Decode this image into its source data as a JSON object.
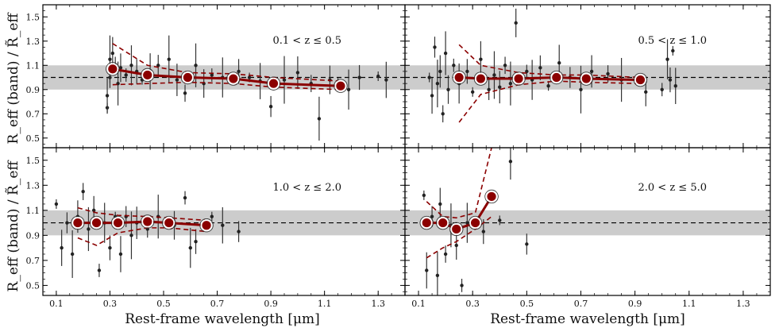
{
  "chart_data": {
    "type": "scatter",
    "title": "",
    "xlabel": "Rest-frame wavelength [μm]",
    "ylabel": "R_eff (band) / R̃_eff",
    "xlim": [
      0.05,
      1.4
    ],
    "ylim": [
      0.42,
      1.6
    ],
    "xticks": [
      0.1,
      0.3,
      0.5,
      0.7,
      0.9,
      1.1,
      1.3
    ],
    "yticks": [
      0.5,
      0.7,
      0.9,
      1.1,
      1.3,
      1.5
    ],
    "reference_line": 1.0,
    "shaded_band": [
      0.9,
      1.1
    ],
    "colors": {
      "trend": "#8b0000",
      "points": "#222222",
      "band": "#cccccc"
    },
    "panels": [
      {
        "label": "0.1 < z ≤ 0.5",
        "median": {
          "x": [
            0.31,
            0.44,
            0.59,
            0.76,
            0.91,
            1.16
          ],
          "y": [
            1.07,
            1.02,
            1.0,
            0.99,
            0.95,
            0.93
          ]
        },
        "band_upper": [
          1.28,
          1.1,
          1.04,
          1.03,
          1.0,
          0.97
        ],
        "band_lower": [
          0.94,
          0.95,
          0.96,
          0.95,
          0.92,
          0.9
        ],
        "points": [
          [
            0.29,
            0.75
          ],
          [
            0.29,
            0.85
          ],
          [
            0.3,
            1.0
          ],
          [
            0.3,
            1.15
          ],
          [
            0.31,
            1.2
          ],
          [
            0.32,
            1.1
          ],
          [
            0.33,
            0.95
          ],
          [
            0.34,
            1.08
          ],
          [
            0.36,
            1.02
          ],
          [
            0.38,
            1.1
          ],
          [
            0.4,
            1.05
          ],
          [
            0.42,
            0.98
          ],
          [
            0.45,
            1.05
          ],
          [
            0.48,
            1.1
          ],
          [
            0.52,
            1.15
          ],
          [
            0.55,
            0.98
          ],
          [
            0.58,
            0.87
          ],
          [
            0.62,
            1.1
          ],
          [
            0.65,
            0.95
          ],
          [
            0.68,
            1.02
          ],
          [
            0.72,
            1.0
          ],
          [
            0.78,
            1.05
          ],
          [
            0.82,
            1.0
          ],
          [
            0.86,
            0.97
          ],
          [
            0.9,
            0.76
          ],
          [
            0.95,
            0.98
          ],
          [
            1.0,
            1.04
          ],
          [
            1.05,
            0.95
          ],
          [
            1.08,
            0.66
          ],
          [
            1.12,
            0.98
          ],
          [
            1.15,
            0.94
          ],
          [
            1.19,
            0.9
          ],
          [
            1.23,
            1.0
          ],
          [
            1.3,
            1.01
          ],
          [
            1.33,
            0.98
          ]
        ]
      },
      {
        "label": "0.5 < z ≤ 1.0",
        "median": {
          "x": [
            0.25,
            0.33,
            0.47,
            0.61,
            0.72,
            0.92
          ],
          "y": [
            1.0,
            0.99,
            0.99,
            1.0,
            0.99,
            0.98
          ]
        },
        "band_upper": [
          1.27,
          1.1,
          1.04,
          1.02,
          1.02,
          1.0
        ],
        "band_lower": [
          0.63,
          0.86,
          0.94,
          0.97,
          0.96,
          0.95
        ],
        "points": [
          [
            0.14,
            1.0
          ],
          [
            0.15,
            0.85
          ],
          [
            0.16,
            1.25
          ],
          [
            0.17,
            0.95
          ],
          [
            0.18,
            1.05
          ],
          [
            0.19,
            0.7
          ],
          [
            0.2,
            1.2
          ],
          [
            0.21,
            0.9
          ],
          [
            0.23,
            1.1
          ],
          [
            0.25,
            0.95
          ],
          [
            0.28,
            1.05
          ],
          [
            0.3,
            0.88
          ],
          [
            0.33,
            1.15
          ],
          [
            0.36,
            0.9
          ],
          [
            0.38,
            1.02
          ],
          [
            0.4,
            0.92
          ],
          [
            0.42,
            1.1
          ],
          [
            0.44,
            0.95
          ],
          [
            0.46,
            1.45
          ],
          [
            0.5,
            1.05
          ],
          [
            0.52,
            0.98
          ],
          [
            0.55,
            1.08
          ],
          [
            0.58,
            0.93
          ],
          [
            0.62,
            1.12
          ],
          [
            0.66,
            1.0
          ],
          [
            0.7,
            0.9
          ],
          [
            0.74,
            1.05
          ],
          [
            0.8,
            1.03
          ],
          [
            0.85,
            0.98
          ],
          [
            0.94,
            0.88
          ],
          [
            1.0,
            0.9
          ],
          [
            1.02,
            1.15
          ],
          [
            1.03,
            0.98
          ],
          [
            1.04,
            1.22
          ],
          [
            1.05,
            0.93
          ]
        ]
      },
      {
        "label": "1.0 < z ≤ 2.0",
        "median": {
          "x": [
            0.18,
            0.25,
            0.33,
            0.44,
            0.52,
            0.66
          ],
          "y": [
            1.0,
            1.0,
            1.0,
            1.01,
            1.0,
            0.98
          ]
        },
        "band_upper": [
          1.12,
          1.08,
          1.06,
          1.05,
          1.04,
          1.02
        ],
        "band_lower": [
          0.88,
          0.82,
          0.92,
          0.96,
          0.96,
          0.93
        ],
        "points": [
          [
            0.1,
            1.15
          ],
          [
            0.12,
            0.8
          ],
          [
            0.14,
            1.0
          ],
          [
            0.16,
            0.75
          ],
          [
            0.18,
            1.05
          ],
          [
            0.2,
            1.25
          ],
          [
            0.22,
            0.95
          ],
          [
            0.24,
            1.1
          ],
          [
            0.26,
            0.62
          ],
          [
            0.28,
            1.0
          ],
          [
            0.3,
            0.8
          ],
          [
            0.32,
            1.05
          ],
          [
            0.34,
            0.75
          ],
          [
            0.36,
            1.05
          ],
          [
            0.38,
            0.9
          ],
          [
            0.4,
            1.0
          ],
          [
            0.44,
            0.95
          ],
          [
            0.48,
            1.05
          ],
          [
            0.54,
            0.98
          ],
          [
            0.58,
            1.2
          ],
          [
            0.6,
            0.8
          ],
          [
            0.62,
            0.85
          ],
          [
            0.68,
            1.05
          ],
          [
            0.72,
            0.98
          ],
          [
            0.78,
            0.93
          ]
        ]
      },
      {
        "label": "2.0 < z ≤ 5.0",
        "median": {
          "x": [
            0.13,
            0.19,
            0.24,
            0.31,
            0.37
          ],
          "y": [
            1.0,
            1.0,
            0.95,
            1.0,
            1.21
          ]
        },
        "band_upper": [
          1.17,
          1.05,
          1.04,
          1.08,
          1.6
        ],
        "band_lower": [
          0.72,
          0.8,
          0.85,
          0.95,
          1.05
        ],
        "points": [
          [
            0.12,
            1.22
          ],
          [
            0.13,
            0.62
          ],
          [
            0.15,
            1.05
          ],
          [
            0.17,
            0.58
          ],
          [
            0.18,
            1.15
          ],
          [
            0.2,
            0.75
          ],
          [
            0.22,
            0.98
          ],
          [
            0.24,
            0.82
          ],
          [
            0.26,
            0.5
          ],
          [
            0.28,
            1.0
          ],
          [
            0.34,
            0.93
          ],
          [
            0.4,
            1.02
          ],
          [
            0.44,
            1.49
          ],
          [
            0.5,
            0.83
          ]
        ]
      }
    ]
  }
}
